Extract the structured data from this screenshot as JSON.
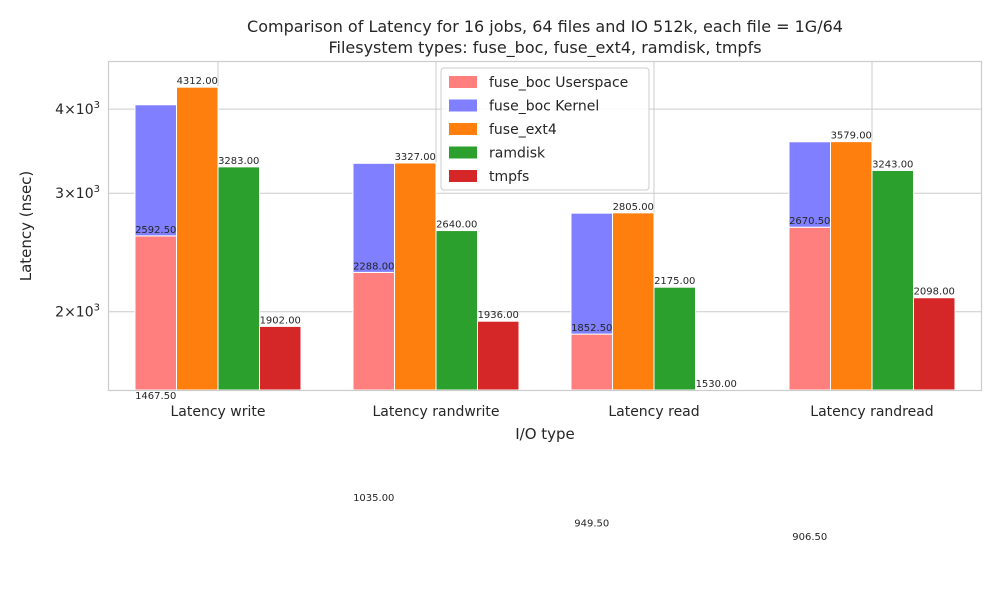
{
  "chart_data": {
    "type": "bar",
    "title_line1": "Comparison of Latency for 16 jobs, 64 files and  IO 512k, each file = 1G/64",
    "title_line2": "Filesystem types: fuse_boc, fuse_ext4, ramdisk, tmpfs",
    "xlabel": "I/O type",
    "ylabel": "Latency (nsec)",
    "yscale": "log",
    "ylim": [
      1530,
      4700
    ],
    "yticks": [
      {
        "value": 2000,
        "base": "2",
        "exp": "3"
      },
      {
        "value": 3000,
        "base": "3",
        "exp": "3"
      },
      {
        "value": 4000,
        "base": "4",
        "exp": "3"
      }
    ],
    "categories": [
      "Latency write",
      "Latency randwrite",
      "Latency read",
      "Latency randread"
    ],
    "series": [
      {
        "name": "fuse_boc Userspace",
        "color": "#ff7f7f",
        "values": [
          2592.5,
          2288.0,
          1852.5,
          2670.5
        ]
      },
      {
        "name": "fuse_boc Kernel",
        "color": "#7f7fff",
        "values": [
          1467.5,
          1035.0,
          949.5,
          906.5
        ],
        "stacked_on": "fuse_boc Userspace"
      },
      {
        "name": "fuse_ext4",
        "color": "#ff7f0e",
        "values": [
          4312.0,
          3327.0,
          2805.0,
          3579.0
        ]
      },
      {
        "name": "ramdisk",
        "color": "#2ca02c",
        "values": [
          3283.0,
          2640.0,
          2175.0,
          3243.0
        ]
      },
      {
        "name": "tmpfs",
        "color": "#d62728",
        "values": [
          1902.0,
          1936.0,
          1530.0,
          2098.0
        ]
      }
    ],
    "value_labels": {
      "fuse_boc Userspace": [
        "2592.50",
        "2288.00",
        "1852.50",
        "2670.50"
      ],
      "fuse_boc Kernel": [
        "1467.50",
        "1035.00",
        "949.50",
        "906.50"
      ],
      "fuse_ext4": [
        "4312.00",
        "3327.00",
        "2805.00",
        "3579.00"
      ],
      "ramdisk": [
        "3283.00",
        "2640.00",
        "2175.00",
        "3243.00"
      ],
      "tmpfs": [
        "1902.00",
        "1936.00",
        "1530.00",
        "2098.00"
      ]
    },
    "grid": true,
    "legend_position": "top-center"
  }
}
